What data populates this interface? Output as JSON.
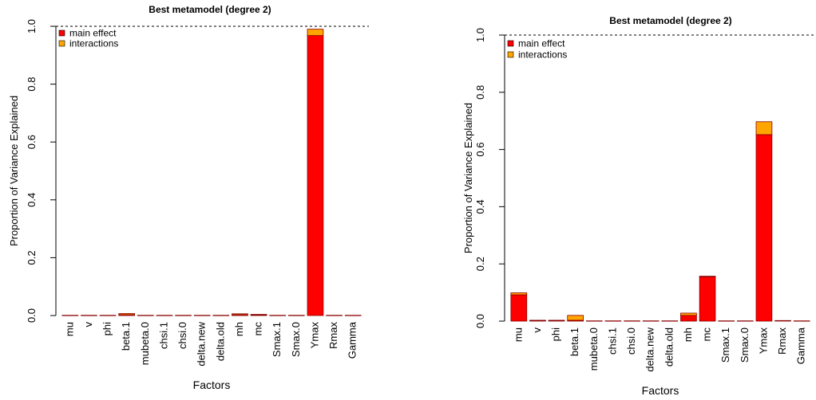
{
  "chart_data": [
    {
      "type": "bar",
      "stacked": true,
      "title": "Best metamodel (degree 2)",
      "xlabel": "Factors",
      "ylabel": "Proportion of Variance Explained",
      "ylim": [
        0,
        1
      ],
      "yticks": [
        "0.0",
        "0.2",
        "0.4",
        "0.6",
        "0.8",
        "1.0"
      ],
      "reference_line": 1.0,
      "categories": [
        "mu",
        "v",
        "phi",
        "beta.1",
        "mubeta.0",
        "chsi.1",
        "chsi.0",
        "delta.new",
        "delta.old",
        "mh",
        "mc",
        "Smax.1",
        "Smax.0",
        "Ymax",
        "Rmax",
        "Gamma"
      ],
      "series": [
        {
          "name": "main effect",
          "color": "#ff0000",
          "values": [
            0.001,
            0.001,
            0.001,
            0.003,
            0.001,
            0.001,
            0.001,
            0.001,
            0.001,
            0.003,
            0.002,
            0.001,
            0.001,
            0.968,
            0.001,
            0.001
          ]
        },
        {
          "name": "interactions",
          "color": "#ffa500",
          "values": [
            0.0,
            0.0,
            0.0,
            0.004,
            0.0,
            0.0,
            0.0,
            0.0,
            0.0,
            0.003,
            0.002,
            0.0,
            0.0,
            0.022,
            0.0,
            0.0
          ]
        }
      ],
      "legend": "top-left"
    },
    {
      "type": "bar",
      "stacked": true,
      "title": "Best metamodel (degree 2)",
      "xlabel": "Factors",
      "ylabel": "Proportion of Variance Explained",
      "ylim": [
        0,
        1
      ],
      "yticks": [
        "0.0",
        "0.2",
        "0.4",
        "0.6",
        "0.8",
        "1.0"
      ],
      "reference_line": 1.0,
      "categories": [
        "mu",
        "v",
        "phi",
        "beta.1",
        "mubeta.0",
        "chsi.1",
        "chsi.0",
        "delta.new",
        "delta.old",
        "mh",
        "mc",
        "Smax.1",
        "Smax.0",
        "Ymax",
        "Rmax",
        "Gamma"
      ],
      "series": [
        {
          "name": "main effect",
          "color": "#ff0000",
          "values": [
            0.092,
            0.002,
            0.002,
            0.003,
            0.001,
            0.001,
            0.001,
            0.001,
            0.001,
            0.02,
            0.155,
            0.001,
            0.001,
            0.652,
            0.002,
            0.001
          ]
        },
        {
          "name": "interactions",
          "color": "#ffa500",
          "values": [
            0.007,
            0.001,
            0.001,
            0.017,
            0.0,
            0.0,
            0.0,
            0.0,
            0.0,
            0.008,
            0.002,
            0.0,
            0.0,
            0.045,
            0.0,
            0.0
          ]
        }
      ],
      "legend": "top-left"
    }
  ]
}
